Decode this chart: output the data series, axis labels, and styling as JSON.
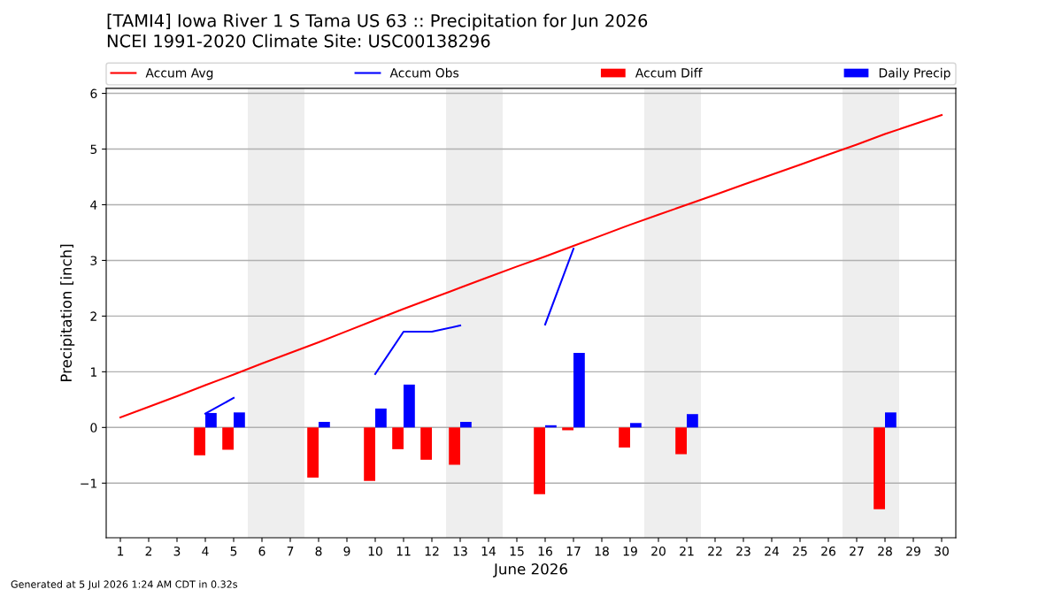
{
  "chart_data": {
    "type": "line",
    "title": "[TAMI4] Iowa River 1 S Tama US 63 :: Precipitation for Jun 2026",
    "subtitle": "NCEI 1991-2020 Climate Site: USC00138296",
    "xlabel": "June 2026",
    "ylabel": "Precipitation [inch]",
    "annotations": [
      "Generated at 5 Jul 2026 1:24 AM CDT in 0.32s"
    ],
    "x": [
      1,
      2,
      3,
      4,
      5,
      6,
      7,
      8,
      9,
      10,
      11,
      12,
      13,
      14,
      15,
      16,
      17,
      18,
      19,
      20,
      21,
      22,
      23,
      24,
      25,
      26,
      27,
      28,
      29,
      30
    ],
    "series": [
      {
        "name": "Accum Avg",
        "color": "#ff0000",
        "values": [
          0.18,
          0.37,
          0.56,
          0.76,
          0.95,
          1.15,
          1.34,
          1.53,
          1.73,
          1.93,
          2.13,
          2.32,
          2.51,
          2.7,
          2.89,
          3.07,
          3.26,
          3.45,
          3.64,
          3.82,
          4.0,
          4.18,
          4.36,
          4.54,
          4.72,
          4.9,
          5.08,
          5.27,
          5.44,
          5.61
        ]
      },
      {
        "name": "Accum Obs",
        "color": "#0000ff",
        "values": [
          null,
          null,
          null,
          0.25,
          0.53,
          null,
          null,
          null,
          null,
          0.96,
          1.72,
          1.72,
          1.83,
          null,
          null,
          1.85,
          3.21,
          null,
          null,
          null,
          null,
          null,
          null,
          null,
          null,
          null,
          null,
          null,
          null,
          null
        ]
      },
      {
        "name": "Accum Diff",
        "type": "bar",
        "color": "#ff0000",
        "values": [
          null,
          null,
          null,
          -0.5,
          -0.4,
          null,
          null,
          -0.9,
          null,
          -0.96,
          -0.39,
          -0.58,
          -0.67,
          null,
          null,
          -1.2,
          -0.05,
          null,
          -0.36,
          null,
          -0.48,
          null,
          null,
          null,
          null,
          null,
          null,
          -1.47,
          null,
          null
        ]
      },
      {
        "name": "Daily Precip",
        "type": "bar",
        "color": "#0000ff",
        "values": [
          null,
          null,
          null,
          0.26,
          0.27,
          null,
          null,
          0.1,
          null,
          0.34,
          0.77,
          null,
          0.1,
          null,
          null,
          0.04,
          1.34,
          null,
          0.08,
          null,
          0.24,
          null,
          null,
          null,
          null,
          null,
          null,
          0.27,
          null,
          null
        ]
      }
    ],
    "bands": [
      {
        "axis": "x",
        "from": 5.5,
        "to": 7.5,
        "color": "#eeeeee"
      },
      {
        "axis": "x",
        "from": 12.5,
        "to": 14.5,
        "color": "#eeeeee"
      },
      {
        "axis": "x",
        "from": 19.5,
        "to": 21.5,
        "color": "#eeeeee"
      },
      {
        "axis": "x",
        "from": 26.5,
        "to": 28.5,
        "color": "#eeeeee"
      }
    ],
    "xlim": [
      0.5,
      30.5
    ],
    "xticks": [
      1,
      2,
      3,
      4,
      5,
      6,
      7,
      8,
      9,
      10,
      11,
      12,
      13,
      14,
      15,
      16,
      17,
      18,
      19,
      20,
      21,
      22,
      23,
      24,
      25,
      26,
      27,
      28,
      29,
      30
    ],
    "ylim": [
      -1.98,
      6.09
    ],
    "yticks": [
      {
        "value": -1,
        "label": "−1"
      },
      0,
      1,
      2,
      3,
      4,
      5,
      6
    ],
    "grid": "y",
    "legend": "top"
  }
}
